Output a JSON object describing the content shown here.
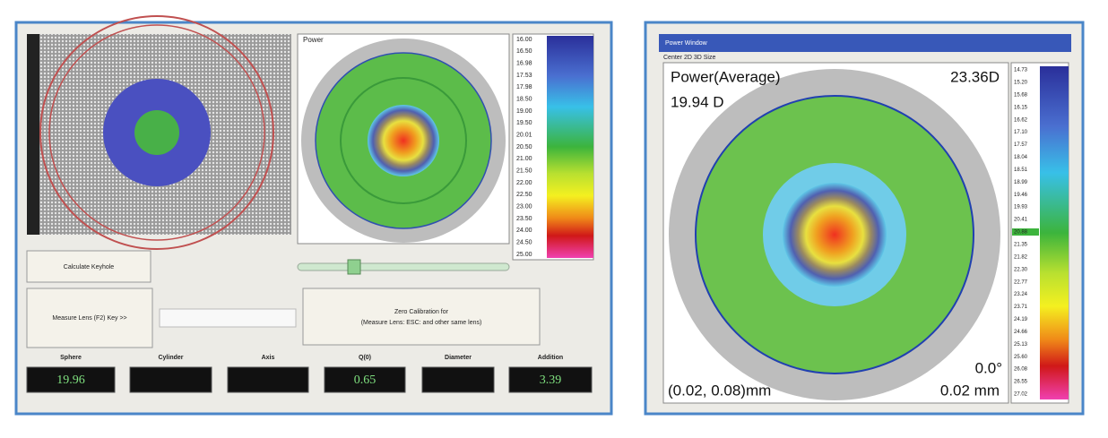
{
  "left_panel": {
    "map_title": "Power",
    "scale_labels": [
      "16.00",
      "16.50",
      "16.98",
      "17.53",
      "17.98",
      "18.50",
      "19.00",
      "19.50",
      "20.01",
      "20.50",
      "21.00",
      "21.50",
      "22.00",
      "22.50",
      "23.00",
      "23.50",
      "24.00",
      "24.50",
      "25.00"
    ],
    "buttons": [
      "Calculate Keyhole",
      "Measure Lens (F2) Key >>",
      "Zero Calibration for",
      "(Measure Lens: ESC: and other same lens)"
    ],
    "readouts": [
      {
        "label": "Sphere",
        "value": "19.96"
      },
      {
        "label": "Cylinder"
      },
      {
        "label": "Axis"
      },
      {
        "label": "Q(0)",
        "value": "0.65"
      },
      {
        "label": "Diameter"
      },
      {
        "label": "Addition",
        "value": "3.39"
      }
    ]
  },
  "right_panel": {
    "window_title": "Power Window",
    "menu": "Center 2D 3D Size",
    "map_title": "Power(Average)",
    "max_value": "23.36D",
    "current_value": "19.94 D",
    "angle": "0.0°",
    "position": "(0.02, 0.08)mm",
    "distance": "0.02 mm",
    "scale_labels": [
      "14.73",
      "15.20",
      "15.68",
      "16.15",
      "16.62",
      "17.10",
      "17.57",
      "18.04",
      "18.51",
      "18.99",
      "19.46",
      "19.93",
      "20.41",
      "20.88",
      "21.35",
      "21.82",
      "22.30",
      "22.77",
      "23.24",
      "23.71",
      "24.19",
      "24.66",
      "25.13",
      "25.60",
      "26.08",
      "26.55",
      "27.02"
    ]
  }
}
